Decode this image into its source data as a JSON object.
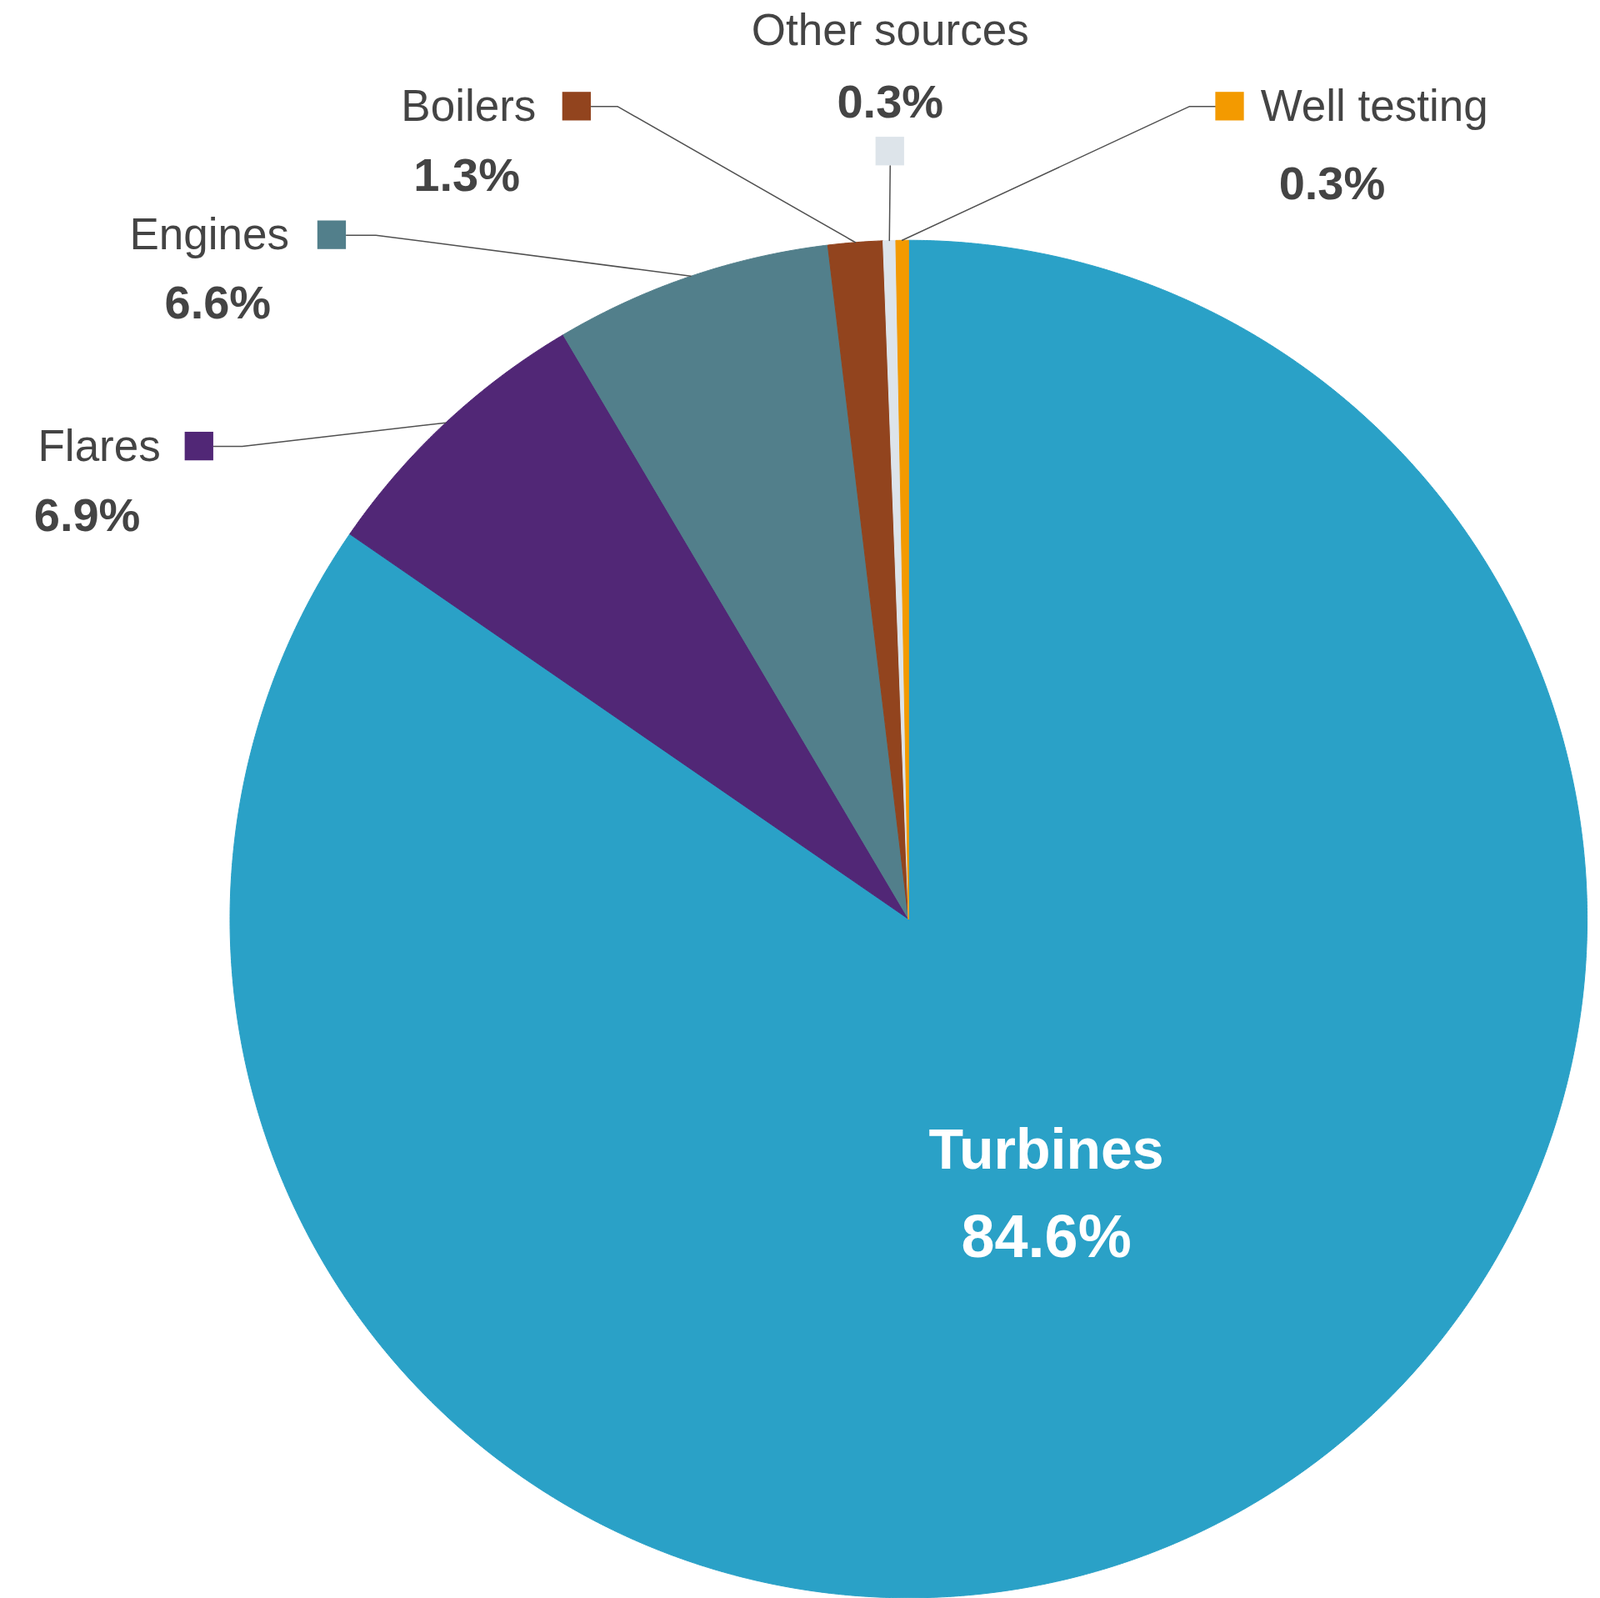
{
  "chart_data": {
    "type": "pie",
    "categories": [
      "Turbines",
      "Flares",
      "Engines",
      "Boilers",
      "Other sources",
      "Well testing"
    ],
    "values": [
      84.6,
      6.9,
      6.6,
      1.3,
      0.3,
      0.3
    ],
    "value_labels": [
      "84.6%",
      "6.9%",
      "6.6%",
      "1.3%",
      "0.3%",
      "0.3%"
    ],
    "colors": [
      "#2aa1c7",
      "#512776",
      "#527f8b",
      "#92441e",
      "#dde4ea",
      "#f39a00"
    ],
    "data_labels": true
  }
}
